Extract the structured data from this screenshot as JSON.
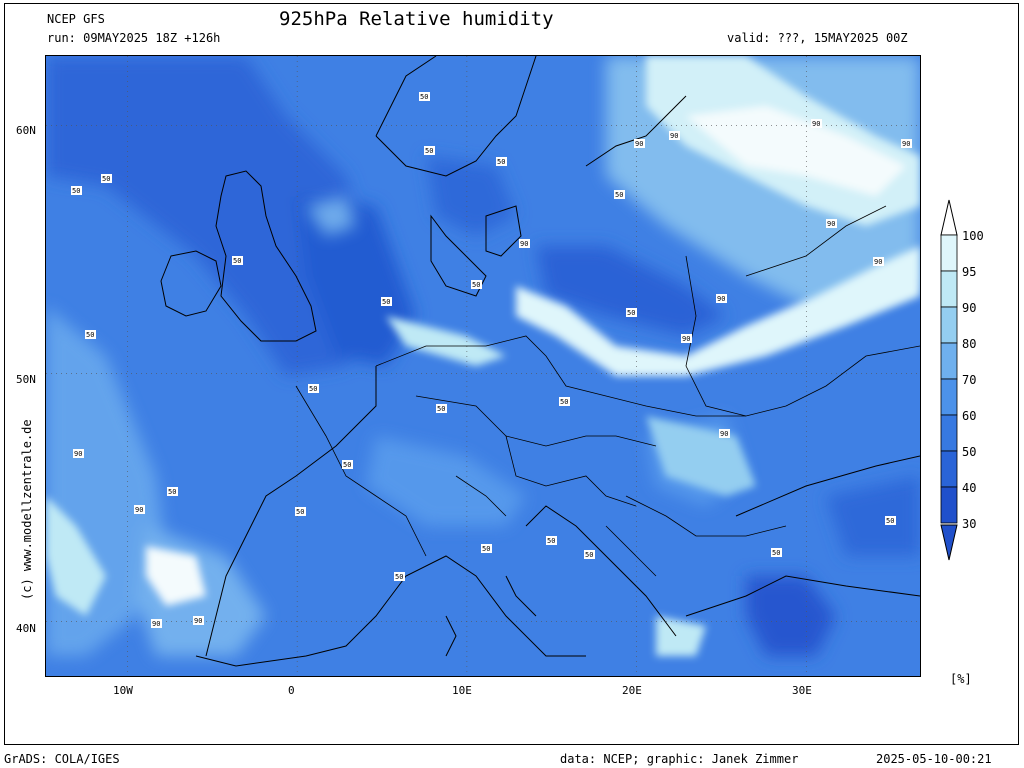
{
  "header": {
    "model": "NCEP GFS",
    "run": "run: 09MAY2025 18Z +126h",
    "title": "925hPa Relative humidity",
    "valid": "valid: ???, 15MAY2025 00Z"
  },
  "map": {
    "lat_labels": [
      "60N",
      "50N",
      "40N"
    ],
    "lon_labels": [
      "10W",
      "0",
      "10E",
      "20E",
      "30E"
    ],
    "lat_values": [
      60,
      50,
      40
    ],
    "lon_values": [
      -10,
      0,
      10,
      20,
      30
    ],
    "lon_range": [
      -14.8,
      36.7
    ],
    "lat_range": [
      37.8,
      62.8
    ],
    "contour_label_50": "50",
    "contour_label_90": "90"
  },
  "colorbar": {
    "levels": [
      "100",
      "95",
      "90",
      "80",
      "70",
      "60",
      "50",
      "40",
      "30"
    ],
    "unit": "[%]",
    "colors": [
      "#ffffff",
      "#dff6fb",
      "#bfe9f5",
      "#94cef0",
      "#6fb0ee",
      "#4c92ea",
      "#3779e1",
      "#2a64d7",
      "#2050cb"
    ]
  },
  "side_text": "(c) www.modellzentrale.de",
  "footer": {
    "left": "GrADS: COLA/IGES",
    "credit": "data: NCEP; graphic: Janek Zimmer",
    "timestamp": "2025-05-10-00:21"
  }
}
